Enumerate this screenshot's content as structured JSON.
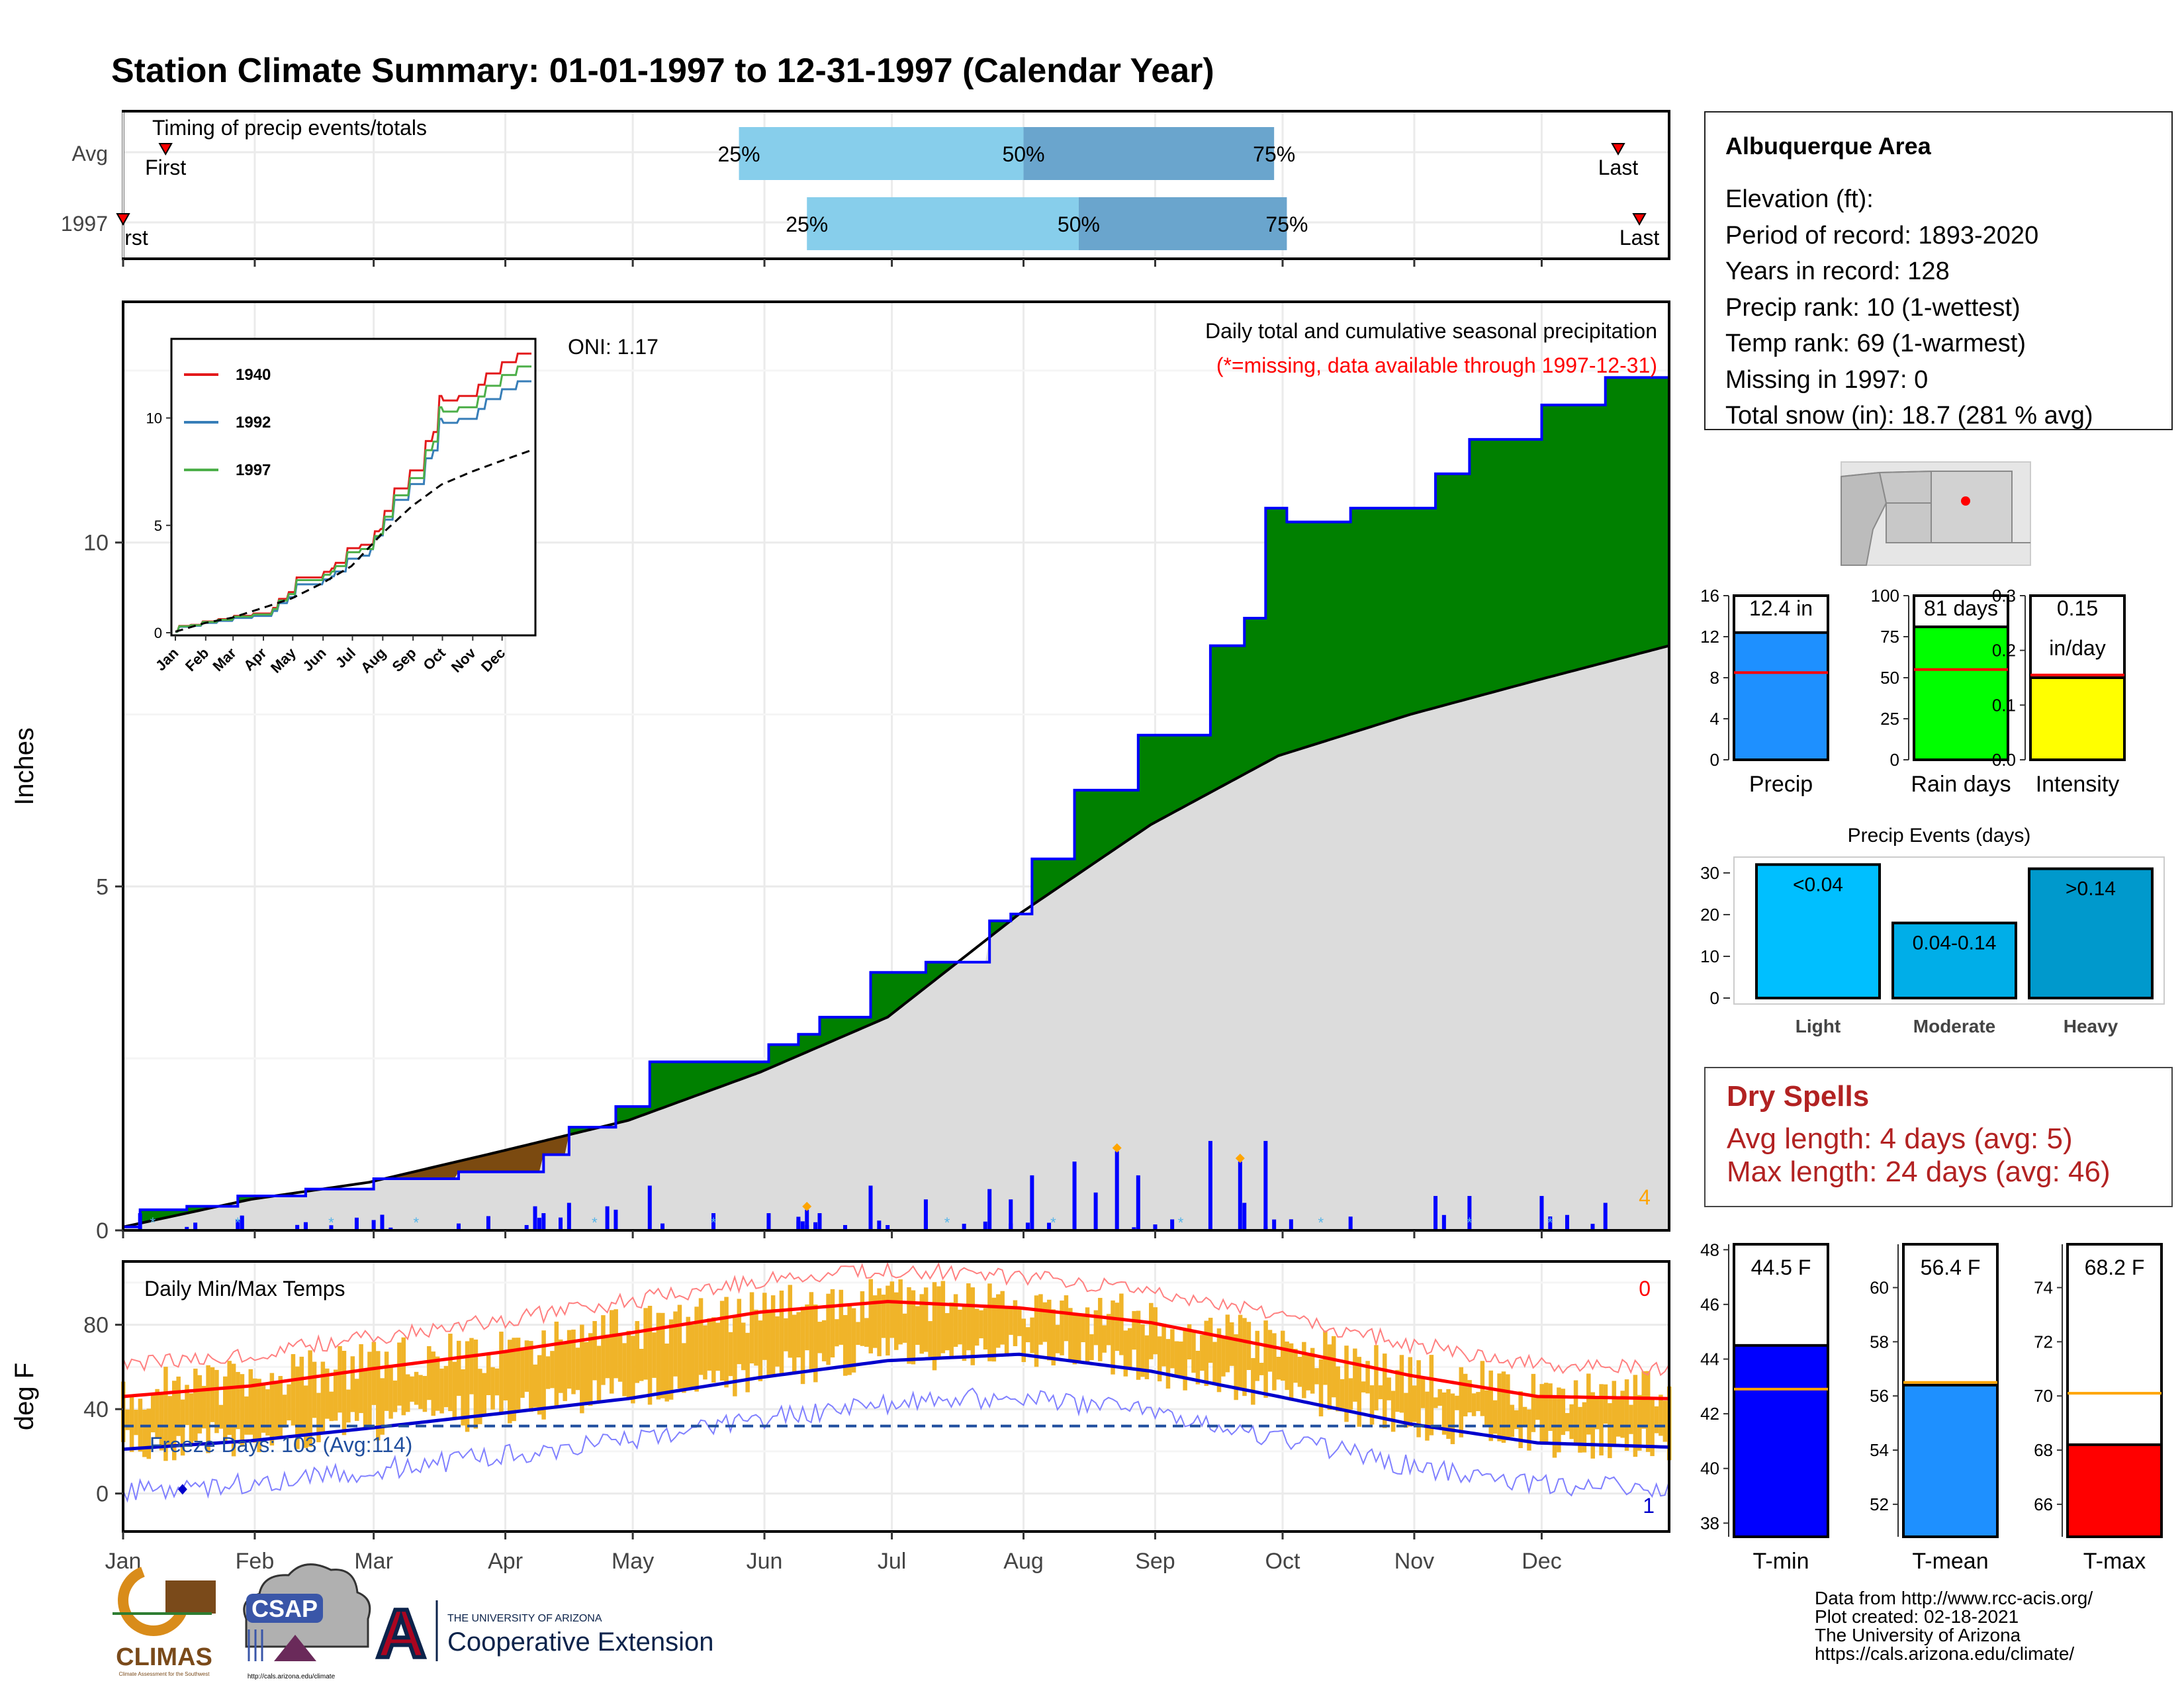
{
  "title": "Station Climate Summary: 01-01-1997 to 12-31-1997 (Calendar Year)",
  "colors": {
    "title": "#000080",
    "cum_1997": "#008000",
    "cum_avg": "#dcdcdc",
    "deficit": "#7b4a10",
    "daily_bar": "#0000ff",
    "dry_spells": "#b22222",
    "temp_bar": "#f0b429",
    "tmax_avg": "#ff0000",
    "tmin_avg": "#0000cc"
  },
  "months": [
    "Jan",
    "Feb",
    "Mar",
    "Apr",
    "May",
    "Jun",
    "Jul",
    "Aug",
    "Sep",
    "Oct",
    "Nov",
    "Dec"
  ],
  "timing": {
    "title": "Timing of precip events/totals",
    "rows": [
      "Avg",
      "1997"
    ],
    "first_label": "First",
    "last_label": "Last",
    "first_label_clipped": "rst",
    "avg": {
      "first_doy": 11,
      "p25_doy": 146,
      "p50_doy": 213,
      "p75_doy": 272,
      "last_doy": 353
    },
    "y1997": {
      "first_doy": 1,
      "p25_doy": 162,
      "p50_doy": 226,
      "p75_doy": 275,
      "last_doy": 358
    },
    "labels": [
      "25%",
      "50%",
      "75%"
    ]
  },
  "precip_panel": {
    "ylabel": "Inches",
    "yticks": [
      0,
      5,
      10
    ],
    "ymax": 13.5,
    "header": "Daily total and cumulative seasonal precipitation",
    "missing_note": "(*=missing, data available through 1997-12-31)",
    "oni_label": "ONI: 1.17",
    "corner_count": "4"
  },
  "inset": {
    "legend": [
      "1940",
      "1992",
      "1997"
    ],
    "yticks": [
      0,
      5,
      10
    ],
    "xticks": [
      "Jan",
      "Feb",
      "Mar",
      "Apr",
      "May",
      "Jun",
      "Jul",
      "Aug",
      "Sep",
      "Oct",
      "Nov",
      "Dec"
    ],
    "colors": [
      "#e31a1c",
      "#377eb8",
      "#4daf4a"
    ]
  },
  "temp_panel": {
    "ylabel": "deg F",
    "title": "Daily Min/Max Temps",
    "yticks": [
      0,
      40,
      80
    ],
    "ymin": -18,
    "ymax": 110,
    "freeze_label": "Freeze Days: 103 (Avg:114)",
    "corner_top": "0",
    "corner_bottom": "1"
  },
  "info": {
    "station": "Albuquerque Area",
    "lines": [
      "Elevation (ft):",
      "Period of record: 1893-2020",
      "Years in record: 128",
      "Precip rank: 10 (1-wettest)",
      "Temp rank: 69 (1-warmest)",
      "Missing in 1997: 0",
      "Total snow (in): 18.7 (281 % avg)"
    ]
  },
  "precip_bars": [
    {
      "label": "Precip",
      "value_label": "12.4 in",
      "value": 12.4,
      "avg": 8.5,
      "ymax": 16,
      "yticks": [
        "0",
        "4",
        "8",
        "12",
        "16"
      ],
      "color": "#1e90ff"
    },
    {
      "label": "Rain days",
      "value_label": "81 days",
      "value": 81,
      "avg": 55,
      "ymax": 100,
      "yticks": [
        "0",
        "25",
        "50",
        "75",
        "100"
      ],
      "color": "#00ff00"
    },
    {
      "label": "Intensity",
      "value_label": "0.15",
      "value_label2": "in/day",
      "value": 0.15,
      "avg": 0.155,
      "ymax": 0.3,
      "yticks": [
        "0.0",
        "0.1",
        "0.2",
        "0.3"
      ],
      "color": "#ffff00"
    }
  ],
  "events": {
    "title": "Precip Events (days)",
    "yticks": [
      "0",
      "10",
      "20",
      "30"
    ],
    "ymax": 33,
    "categories": [
      "Light",
      "Moderate",
      "Heavy"
    ],
    "inside_labels": [
      "<0.04",
      "0.04-0.14",
      ">0.14"
    ],
    "values": [
      32,
      18,
      31
    ],
    "colors": [
      "#00bfff",
      "#00aee8",
      "#0099cc"
    ]
  },
  "dry": {
    "title": "Dry Spells",
    "avg_line": "Avg length: 4 days (avg: 5)",
    "max_line": "Max length: 24 days (avg: 46)"
  },
  "temp_bars": [
    {
      "label": "T-min",
      "value_label": "44.5 F",
      "value": 44.5,
      "avg": 42.9,
      "ymin": 37.5,
      "ymax": 48.2,
      "ticks": [
        38,
        40,
        42,
        44,
        46,
        48
      ],
      "color": "#0000ff"
    },
    {
      "label": "T-mean",
      "value_label": "56.4 F",
      "value": 56.4,
      "avg": 56.5,
      "ymin": 50.8,
      "ymax": 61.6,
      "ticks": [
        52,
        54,
        56,
        58,
        60
      ],
      "color": "#1e90ff"
    },
    {
      "label": "T-max",
      "value_label": "68.2 F",
      "value": 68.2,
      "avg": 70.1,
      "ymin": 64.8,
      "ymax": 75.6,
      "ticks": [
        66,
        68,
        70,
        72,
        74
      ],
      "color": "#ff0000"
    }
  ],
  "footer": {
    "credits": [
      "Data from http://www.rcc-acis.org/",
      "Plot created: 02-18-2021",
      "The University of Arizona",
      "https://cals.arizona.edu/climate/"
    ],
    "logos": {
      "climas": "CLIMAS",
      "climas_sub": "Climate Assessment for the Southwest",
      "csap": "CSAP",
      "csap_url": "http://cals.arizona.edu/climate",
      "ua_letter": "A",
      "ua_small": "THE UNIVERSITY OF ARIZONA",
      "ua_big": "Cooperative Extension"
    }
  },
  "chart_data": [
    {
      "type": "area",
      "title": "Daily total and cumulative seasonal precipitation",
      "ylabel": "Inches",
      "ylim": [
        0,
        13.5
      ],
      "x_unit": "day of year",
      "series": [
        {
          "name": "1997",
          "x": [
            1,
            5,
            16,
            28,
            44,
            60,
            80,
            100,
            106,
            117,
            125,
            140,
            153,
            160,
            165,
            177,
            190,
            205,
            210,
            215,
            225,
            240,
            257,
            265,
            270,
            275,
            290,
            310,
            318,
            335,
            350,
            365
          ],
          "values": [
            0.05,
            0.3,
            0.35,
            0.5,
            0.6,
            0.75,
            0.85,
            1.1,
            1.5,
            1.8,
            2.45,
            2.45,
            2.7,
            2.85,
            3.1,
            3.75,
            3.9,
            4.5,
            4.6,
            5.4,
            6.4,
            7.2,
            8.5,
            8.9,
            10.5,
            10.3,
            10.5,
            11.0,
            11.5,
            12.0,
            12.4,
            12.4
          ]
        },
        {
          "name": "Average",
          "x": [
            1,
            31,
            59,
            90,
            120,
            151,
            181,
            212,
            243,
            273,
            304,
            334,
            365
          ],
          "values": [
            0.05,
            0.45,
            0.7,
            1.15,
            1.6,
            2.3,
            3.1,
            4.6,
            5.9,
            6.9,
            7.5,
            8.0,
            8.5
          ]
        }
      ],
      "extra_bars": [
        {
          "doy": 235,
          "value": 1.15
        },
        {
          "doy": 264,
          "value": 1.0
        },
        {
          "doy": 162,
          "value": 0.3
        },
        {
          "doy": 230,
          "value": 0.55
        },
        {
          "doy": 190,
          "value": 0.45
        },
        {
          "doy": 210,
          "value": 0.45
        },
        {
          "doy": 140,
          "value": 0.25
        },
        {
          "doy": 115,
          "value": 0.35
        },
        {
          "doy": 98,
          "value": 0.35
        }
      ]
    },
    {
      "type": "line",
      "title": "Daily Min/Max Temps",
      "ylabel": "deg F",
      "ylim": [
        -18,
        110
      ],
      "series": [
        {
          "name": "avg max",
          "x": [
            1,
            31,
            59,
            90,
            120,
            151,
            181,
            212,
            243,
            273,
            304,
            334,
            365
          ],
          "values": [
            46,
            51,
            59,
            67,
            76,
            86,
            91,
            88,
            81,
            69,
            56,
            46,
            45
          ]
        },
        {
          "name": "avg min",
          "x": [
            1,
            31,
            59,
            90,
            120,
            151,
            181,
            212,
            243,
            273,
            304,
            334,
            365
          ],
          "values": [
            21,
            25,
            31,
            38,
            45,
            55,
            63,
            66,
            58,
            46,
            33,
            24,
            22
          ]
        }
      ]
    }
  ]
}
